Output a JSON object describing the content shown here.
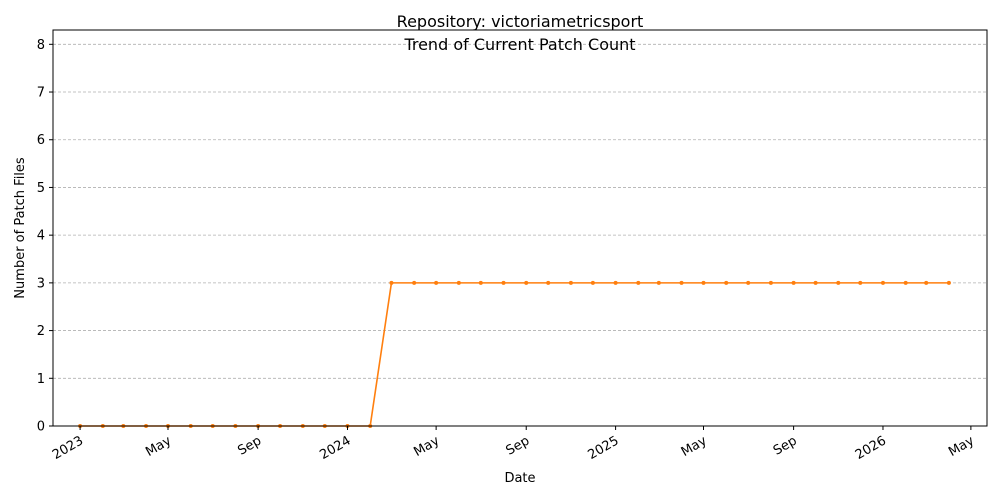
{
  "chart_data": {
    "type": "line",
    "title": "Repository: victoriametricsport",
    "subtitle": "Trend of Current Patch Count",
    "xlabel": "Date",
    "ylabel": "Number of Patch Files",
    "ylim": [
      0,
      8.3
    ],
    "y_ticks": [
      0,
      1,
      2,
      3,
      4,
      5,
      6,
      7,
      8
    ],
    "xlim": [
      "2022-11-25",
      "2026-05-23"
    ],
    "x_ticks": [
      {
        "date": "2023-01-01",
        "label": "2023"
      },
      {
        "date": "2023-05-01",
        "label": "May"
      },
      {
        "date": "2023-09-01",
        "label": "Sep"
      },
      {
        "date": "2024-01-01",
        "label": "2024"
      },
      {
        "date": "2024-05-01",
        "label": "May"
      },
      {
        "date": "2024-09-01",
        "label": "Sep"
      },
      {
        "date": "2025-01-01",
        "label": "2025"
      },
      {
        "date": "2025-05-01",
        "label": "May"
      },
      {
        "date": "2025-09-01",
        "label": "Sep"
      },
      {
        "date": "2026-01-01",
        "label": "2026"
      },
      {
        "date": "2026-05-01",
        "label": "May"
      }
    ],
    "grid": "y",
    "color": "#ff7f0e",
    "series": [
      {
        "x": [
          "2023-01-01",
          "2023-02-01",
          "2023-03-01",
          "2023-04-01",
          "2023-05-01",
          "2023-06-01",
          "2023-07-01",
          "2023-08-01",
          "2023-09-01",
          "2023-10-01",
          "2023-11-01",
          "2023-12-01",
          "2024-01-01",
          "2024-02-01",
          "2024-03-01",
          "2024-04-01",
          "2024-05-01",
          "2024-06-01",
          "2024-07-01",
          "2024-08-01",
          "2024-09-01",
          "2024-10-01",
          "2024-11-01",
          "2024-12-01",
          "2025-01-01",
          "2025-02-01",
          "2025-03-01",
          "2025-04-01",
          "2025-05-01",
          "2025-06-01",
          "2025-07-01",
          "2025-08-01",
          "2025-09-01",
          "2025-10-01",
          "2025-11-01",
          "2025-12-01",
          "2026-01-01",
          "2026-02-01",
          "2026-03-01",
          "2026-04-01"
        ],
        "values": [
          0,
          0,
          0,
          0,
          0,
          0,
          0,
          0,
          0,
          0,
          0,
          0,
          0,
          0,
          3,
          3,
          3,
          3,
          3,
          3,
          3,
          3,
          3,
          3,
          3,
          3,
          3,
          3,
          3,
          3,
          3,
          3,
          3,
          3,
          3,
          3,
          3,
          3,
          3,
          3
        ]
      }
    ]
  }
}
